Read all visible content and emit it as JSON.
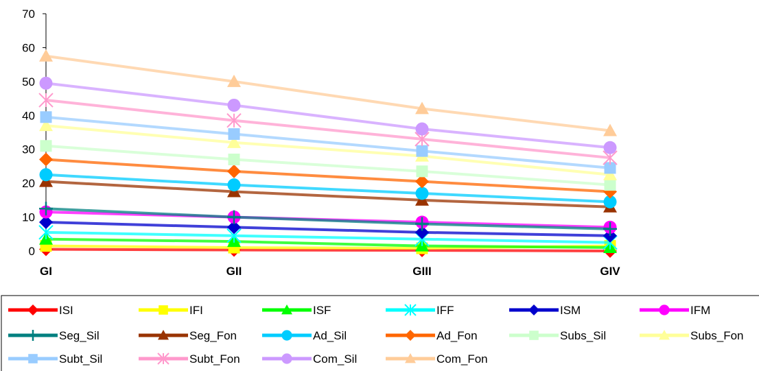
{
  "chart_data": {
    "type": "line",
    "title": "",
    "xlabel": "",
    "ylabel": "",
    "categories": [
      "GI",
      "GII",
      "GIII",
      "GIV"
    ],
    "ylim": [
      0,
      70
    ],
    "yticks": [
      0,
      10,
      20,
      30,
      40,
      50,
      60,
      70
    ],
    "grid": false,
    "legend_position": "bottom",
    "series": [
      {
        "name": "ISI",
        "values": [
          0.5,
          0.3,
          0.2,
          0.0
        ],
        "color": "#ff0000",
        "marker": "diamond"
      },
      {
        "name": "IFI",
        "values": [
          1.5,
          1.0,
          0.8,
          1.5
        ],
        "color": "#ffff00",
        "marker": "square"
      },
      {
        "name": "ISF",
        "values": [
          3.5,
          2.8,
          1.5,
          1.0
        ],
        "color": "#00ff00",
        "marker": "triangle"
      },
      {
        "name": "IFF",
        "values": [
          5.5,
          4.5,
          3.5,
          2.5
        ],
        "color": "#00ffff",
        "marker": "x"
      },
      {
        "name": "ISM",
        "values": [
          8.5,
          7.0,
          5.5,
          4.5
        ],
        "color": "#0000cc",
        "marker": "diamond"
      },
      {
        "name": "IFM",
        "values": [
          11.5,
          10.0,
          8.5,
          7.0
        ],
        "color": "#ff00ff",
        "marker": "circle"
      },
      {
        "name": "Seg_Sil",
        "values": [
          12.5,
          10.0,
          8.0,
          6.5
        ],
        "color": "#008080",
        "marker": "plus"
      },
      {
        "name": "Seg_Fon",
        "values": [
          20.5,
          17.5,
          15.0,
          13.0
        ],
        "color": "#993300",
        "marker": "triangle"
      },
      {
        "name": "Ad_Sil",
        "values": [
          22.5,
          19.5,
          17.0,
          14.5
        ],
        "color": "#00ccff",
        "marker": "circle"
      },
      {
        "name": "Ad_Fon",
        "values": [
          27.0,
          23.5,
          20.5,
          17.5
        ],
        "color": "#ff6600",
        "marker": "diamond"
      },
      {
        "name": "Subs_Sil",
        "values": [
          31.0,
          27.0,
          23.5,
          19.5
        ],
        "color": "#ccffcc",
        "marker": "square"
      },
      {
        "name": "Subs_Fon",
        "values": [
          37.0,
          32.0,
          28.0,
          22.5
        ],
        "color": "#ffff99",
        "marker": "triangle"
      },
      {
        "name": "Subt_Sil",
        "values": [
          39.5,
          34.5,
          29.5,
          24.5
        ],
        "color": "#99ccff",
        "marker": "square"
      },
      {
        "name": "Subt_Fon",
        "values": [
          44.5,
          38.5,
          33.0,
          27.5
        ],
        "color": "#ff99cc",
        "marker": "x"
      },
      {
        "name": "Com_Sil",
        "values": [
          49.5,
          43.0,
          36.0,
          30.5
        ],
        "color": "#cc99ff",
        "marker": "circle"
      },
      {
        "name": "Com_Fon",
        "values": [
          57.5,
          50.0,
          42.0,
          35.5
        ],
        "color": "#ffcc99",
        "marker": "triangle"
      }
    ]
  }
}
